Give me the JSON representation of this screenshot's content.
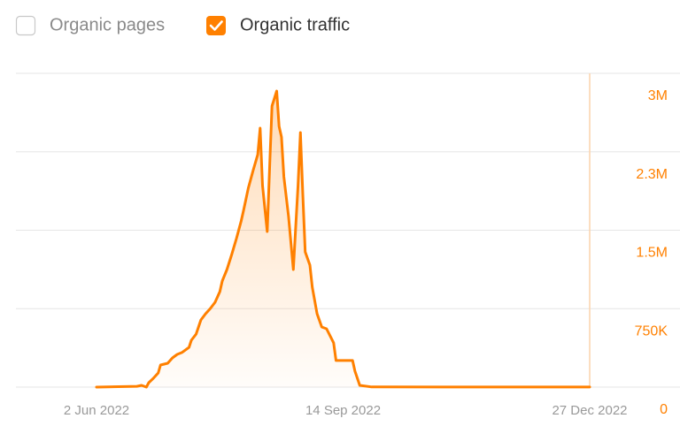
{
  "chart_data": {
    "type": "area",
    "hidden_series": [
      "Organic pages"
    ],
    "x": [
      "2022-06-02",
      "2022-06-19",
      "2022-06-21",
      "2022-06-23",
      "2022-06-24",
      "2022-06-26",
      "2022-06-28",
      "2022-06-29",
      "2022-07-02",
      "2022-07-04",
      "2022-07-06",
      "2022-07-08",
      "2022-07-11",
      "2022-07-12",
      "2022-07-14",
      "2022-07-16",
      "2022-07-18",
      "2022-07-20",
      "2022-07-22",
      "2022-07-24",
      "2022-07-25",
      "2022-07-27",
      "2022-07-29",
      "2022-07-31",
      "2022-08-02",
      "2022-08-03",
      "2022-08-05",
      "2022-08-07",
      "2022-08-09",
      "2022-08-10",
      "2022-08-11",
      "2022-08-13",
      "2022-08-14",
      "2022-08-15",
      "2022-08-17",
      "2022-08-18",
      "2022-08-19",
      "2022-08-20",
      "2022-08-22",
      "2022-08-24",
      "2022-08-26",
      "2022-08-27",
      "2022-08-28",
      "2022-08-29",
      "2022-08-31",
      "2022-09-01",
      "2022-09-03",
      "2022-09-05",
      "2022-09-07",
      "2022-09-10",
      "2022-09-11",
      "2022-09-18",
      "2022-09-19",
      "2022-09-21",
      "2022-09-26",
      "2022-10-26",
      "2022-12-27"
    ],
    "series": [
      {
        "name": "Organic traffic",
        "color": "#ff8000",
        "values": [
          0,
          8000,
          17000,
          0,
          42000,
          85000,
          135000,
          211000,
          228000,
          279000,
          313000,
          330000,
          380000,
          448000,
          507000,
          642000,
          701000,
          752000,
          811000,
          913000,
          1014000,
          1124000,
          1268000,
          1420000,
          1589000,
          1690000,
          1901000,
          2070000,
          2223000,
          2476000,
          1927000,
          1487000,
          2096000,
          2687000,
          2831000,
          2493000,
          2392000,
          2011000,
          1631000,
          1124000,
          1927000,
          2434000,
          1842000,
          1293000,
          1166000,
          955000,
          701000,
          575000,
          558000,
          423000,
          254000,
          254000,
          152000,
          17000,
          2000,
          1000,
          1000
        ]
      }
    ],
    "xlim": [
      "2022-04-29",
      "2022-12-27"
    ],
    "xticks": [
      {
        "value": "2022-06-02",
        "label": "2 Jun 2022"
      },
      {
        "value": "2022-09-14",
        "label": "14 Sep 2022"
      },
      {
        "value": "2022-12-27",
        "label": "27 Dec 2022"
      }
    ],
    "ylim": [
      0,
      3000000
    ],
    "yticks": [
      0,
      {
        "value": 750000,
        "label": "750K"
      },
      {
        "value": 1500000,
        "label": "1.5M"
      },
      {
        "value": 2250000,
        "label": "2.3M"
      },
      {
        "value": 3000000,
        "label": "3M"
      }
    ],
    "grid": true
  }
}
